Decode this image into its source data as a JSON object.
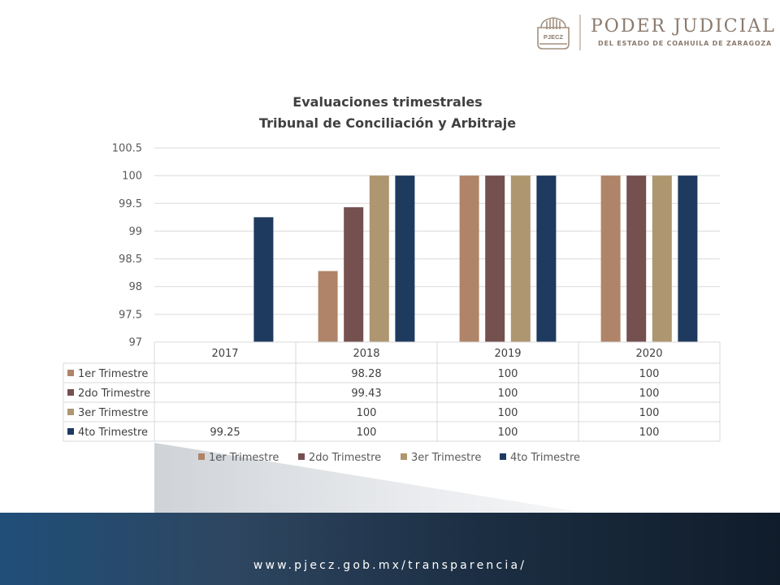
{
  "header": {
    "logo_monogram": "PJECZ",
    "logo_title": "PODER JUDICIAL",
    "logo_subtitle": "DEL ESTADO DE COAHUILA DE ZARAGOZA"
  },
  "chart_data": {
    "type": "bar",
    "title": "Evaluaciones trimestrales",
    "subtitle": "Tribunal de Conciliación y Arbitraje",
    "categories": [
      "2017",
      "2018",
      "2019",
      "2020"
    ],
    "series": [
      {
        "name": "1er Trimestre",
        "values": [
          null,
          98.28,
          100,
          100
        ],
        "labels": [
          "",
          "98.28",
          "100",
          "100"
        ],
        "color": "#b08468"
      },
      {
        "name": "2do Trimestre",
        "values": [
          null,
          99.43,
          100,
          100
        ],
        "labels": [
          "",
          "99.43",
          "100",
          "100"
        ],
        "color": "#74504f"
      },
      {
        "name": "3er Trimestre",
        "values": [
          null,
          100,
          100,
          100
        ],
        "labels": [
          "",
          "100",
          "100",
          "100"
        ],
        "color": "#ae9670"
      },
      {
        "name": "4to Trimestre",
        "values": [
          99.25,
          100,
          100,
          100
        ],
        "labels": [
          "99.25",
          "100",
          "100",
          "100"
        ],
        "color": "#1f3a5f"
      }
    ],
    "ylim": [
      97,
      100.5
    ],
    "yticks": [
      "97",
      "97.5",
      "98",
      "98.5",
      "99",
      "99.5",
      "100",
      "100.5"
    ],
    "grid": true,
    "legend": "bottom",
    "data_table": true
  },
  "footer": {
    "url": "www.pjecz.gob.mx/transparencia/"
  }
}
